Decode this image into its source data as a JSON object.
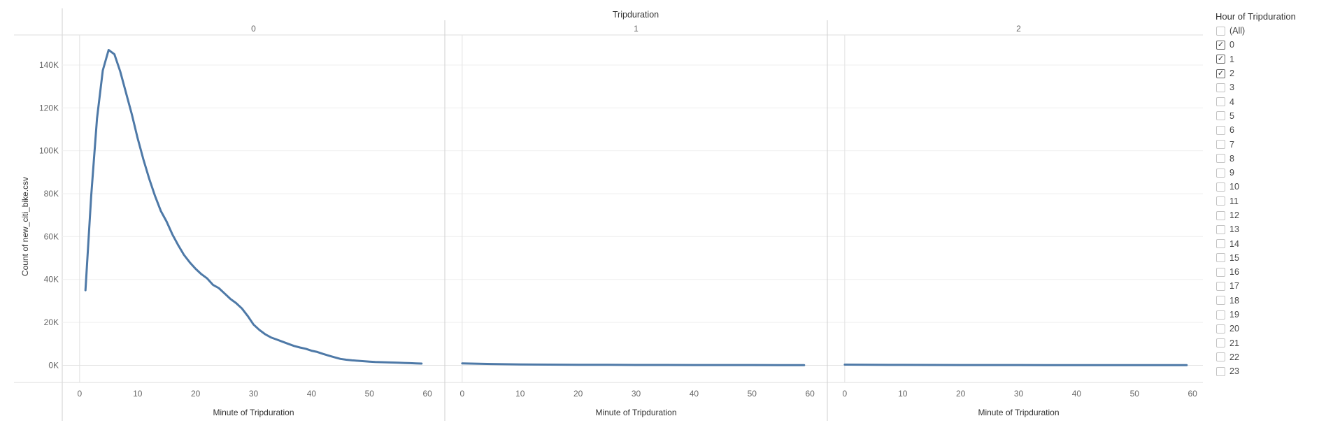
{
  "chart_data": {
    "type": "line",
    "title": "Tripduration",
    "ylabel": "Count of new_citi_bike.csv",
    "xlabel": "Minute of Tripduration",
    "ylim": [
      -8000,
      154000
    ],
    "yticks": [
      0,
      20000,
      40000,
      60000,
      80000,
      100000,
      120000,
      140000
    ],
    "ytick_labels": [
      "0K",
      "20K",
      "40K",
      "60K",
      "80K",
      "100K",
      "120K",
      "140K"
    ],
    "xlim": [
      -3,
      63
    ],
    "xticks": [
      0,
      10,
      20,
      30,
      40,
      50,
      60
    ],
    "line_color": "#4e79a7",
    "grid": true,
    "panels": [
      {
        "name": "0",
        "x": [
          1,
          2,
          3,
          4,
          5,
          6,
          7,
          8,
          9,
          10,
          11,
          12,
          13,
          14,
          15,
          16,
          17,
          18,
          19,
          20,
          21,
          22,
          23,
          24,
          25,
          26,
          27,
          28,
          29,
          30,
          31,
          32,
          33,
          34,
          35,
          36,
          37,
          38,
          39,
          40,
          41,
          42,
          43,
          44,
          45,
          46,
          47,
          48,
          49,
          50,
          51,
          52,
          53,
          54,
          55,
          56,
          57,
          58,
          59
        ],
        "y": [
          35000,
          79000,
          115000,
          137500,
          147000,
          145000,
          137000,
          127000,
          117000,
          106000,
          96000,
          87000,
          79000,
          72000,
          67000,
          61000,
          56000,
          51500,
          48000,
          45000,
          42500,
          40500,
          37500,
          36000,
          33500,
          31000,
          29000,
          26500,
          23000,
          19000,
          16500,
          14500,
          13000,
          12000,
          11000,
          10000,
          9000,
          8300,
          7700,
          6800,
          6200,
          5300,
          4500,
          3700,
          3000,
          2600,
          2300,
          2100,
          1900,
          1700,
          1550,
          1450,
          1350,
          1280,
          1200,
          1100,
          1000,
          900,
          800
        ]
      },
      {
        "name": "1",
        "x": [
          0,
          5,
          10,
          15,
          20,
          25,
          30,
          35,
          40,
          45,
          50,
          55,
          59
        ],
        "y": [
          900,
          600,
          400,
          300,
          250,
          200,
          150,
          150,
          120,
          100,
          100,
          80,
          70
        ]
      },
      {
        "name": "2",
        "x": [
          0,
          5,
          10,
          15,
          20,
          25,
          30,
          35,
          40,
          45,
          50,
          55,
          59
        ],
        "y": [
          300,
          220,
          180,
          150,
          130,
          110,
          100,
          90,
          80,
          70,
          60,
          50,
          40
        ]
      }
    ]
  },
  "legend": {
    "title": "Hour of Tripduration",
    "items": [
      {
        "label": "(All)",
        "checked": false
      },
      {
        "label": "0",
        "checked": true
      },
      {
        "label": "1",
        "checked": true
      },
      {
        "label": "2",
        "checked": true
      },
      {
        "label": "3",
        "checked": false
      },
      {
        "label": "4",
        "checked": false
      },
      {
        "label": "5",
        "checked": false
      },
      {
        "label": "6",
        "checked": false
      },
      {
        "label": "7",
        "checked": false
      },
      {
        "label": "8",
        "checked": false
      },
      {
        "label": "9",
        "checked": false
      },
      {
        "label": "10",
        "checked": false
      },
      {
        "label": "11",
        "checked": false
      },
      {
        "label": "12",
        "checked": false
      },
      {
        "label": "13",
        "checked": false
      },
      {
        "label": "14",
        "checked": false
      },
      {
        "label": "15",
        "checked": false
      },
      {
        "label": "16",
        "checked": false
      },
      {
        "label": "17",
        "checked": false
      },
      {
        "label": "18",
        "checked": false
      },
      {
        "label": "19",
        "checked": false
      },
      {
        "label": "20",
        "checked": false
      },
      {
        "label": "21",
        "checked": false
      },
      {
        "label": "22",
        "checked": false
      },
      {
        "label": "23",
        "checked": false
      }
    ]
  }
}
